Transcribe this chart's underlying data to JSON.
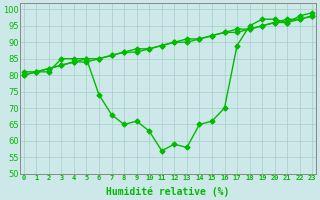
{
  "title": "",
  "xlabel": "Humidité relative (%)",
  "ylabel": "",
  "background_color": "#cce8e8",
  "grid_color": "#aacccc",
  "line_color": "#00bb00",
  "ylim": [
    50,
    102
  ],
  "xlim": [
    -0.3,
    23.3
  ],
  "yticks": [
    50,
    55,
    60,
    65,
    70,
    75,
    80,
    85,
    90,
    95,
    100
  ],
  "xticks": [
    0,
    1,
    2,
    3,
    4,
    5,
    6,
    7,
    8,
    9,
    10,
    11,
    12,
    13,
    14,
    15,
    16,
    17,
    18,
    19,
    20,
    21,
    22,
    23
  ],
  "series_main": [
    80,
    81,
    81,
    85,
    85,
    85,
    74,
    68,
    65,
    66,
    63,
    57,
    59,
    58,
    65,
    66,
    70,
    89,
    95,
    97,
    97,
    96,
    98,
    99
  ],
  "series_trend1": [
    80,
    81,
    82,
    83,
    84,
    84,
    85,
    86,
    87,
    87,
    88,
    89,
    90,
    90,
    91,
    92,
    93,
    93,
    94,
    95,
    96,
    96,
    97,
    98
  ],
  "series_trend2": [
    81,
    81,
    82,
    83,
    84,
    85,
    85,
    86,
    87,
    88,
    88,
    89,
    90,
    91,
    91,
    92,
    93,
    94,
    94,
    95,
    96,
    97,
    97,
    98
  ],
  "marker": "D",
  "markersize": 2.5,
  "linewidth": 1.0,
  "xlabel_fontsize": 7,
  "xtick_fontsize": 5,
  "ytick_fontsize": 6
}
